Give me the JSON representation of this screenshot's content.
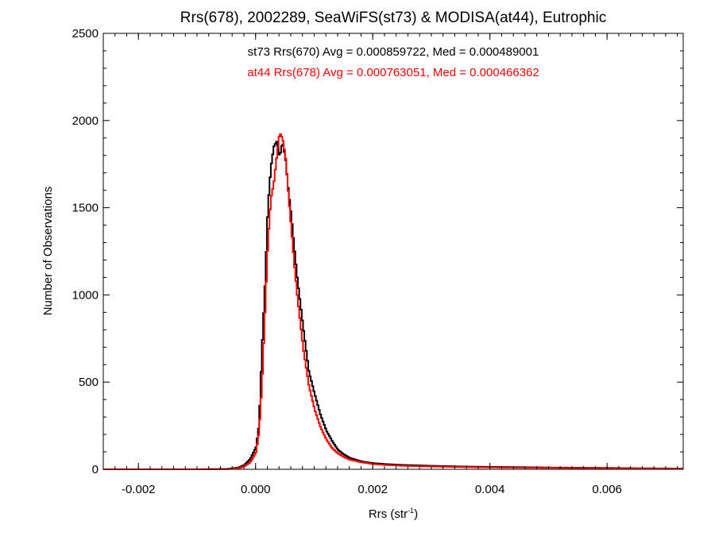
{
  "chart_data": {
    "type": "line",
    "title": "Rrs(678), 2002289, SeaWiFS(st73) & MODISA(at44), Eutrophic",
    "xlabel": {
      "main": "Rrs (str",
      "sup": "-1",
      "end": ")"
    },
    "ylabel": "Number of Observations",
    "xlim": [
      -0.0026,
      0.0073
    ],
    "ylim": [
      0,
      2500
    ],
    "xticks": [
      -0.002,
      0.0,
      0.002,
      0.004,
      0.006
    ],
    "xtick_labels": [
      "-0.002",
      "0.000",
      "0.002",
      "0.004",
      "0.006"
    ],
    "yticks": [
      0,
      500,
      1000,
      1500,
      2000,
      2500
    ],
    "ytick_labels": [
      "0",
      "500",
      "1000",
      "1500",
      "2000",
      "2500"
    ],
    "annotations": [
      {
        "text": "st73 Rrs(670) Avg = 0.000859722, Med = 0.000489001",
        "color": "#000000"
      },
      {
        "text": "at44 Rrs(678) Avg = 0.000763051, Med = 0.000466362",
        "color": "#ff0000"
      }
    ],
    "series": [
      {
        "id": "st73",
        "color": "#000000",
        "points": [
          [
            -0.0026,
            0
          ],
          [
            -0.001,
            0
          ],
          [
            -0.0005,
            2
          ],
          [
            -0.0003,
            10
          ],
          [
            -0.0002,
            25
          ],
          [
            -0.0001,
            60
          ],
          [
            0.0,
            130
          ],
          [
            5e-05,
            260
          ],
          [
            0.0001,
            700
          ],
          [
            0.00015,
            1050
          ],
          [
            0.0002,
            1500
          ],
          [
            0.00025,
            1730
          ],
          [
            0.0003,
            1850
          ],
          [
            0.00035,
            1880
          ],
          [
            0.0004,
            1790
          ],
          [
            0.00045,
            1880
          ],
          [
            0.0005,
            1780
          ],
          [
            0.00055,
            1600
          ],
          [
            0.0006,
            1450
          ],
          [
            0.00065,
            1270
          ],
          [
            0.0007,
            1100
          ],
          [
            0.00075,
            960
          ],
          [
            0.0008,
            820
          ],
          [
            0.0009,
            560
          ],
          [
            0.001,
            430
          ],
          [
            0.0011,
            310
          ],
          [
            0.0012,
            220
          ],
          [
            0.0013,
            160
          ],
          [
            0.0014,
            110
          ],
          [
            0.0015,
            85
          ],
          [
            0.0016,
            65
          ],
          [
            0.0018,
            45
          ],
          [
            0.002,
            35
          ],
          [
            0.0022,
            30
          ],
          [
            0.0025,
            25
          ],
          [
            0.003,
            20
          ],
          [
            0.0035,
            16
          ],
          [
            0.004,
            14
          ],
          [
            0.0045,
            12
          ],
          [
            0.005,
            10
          ],
          [
            0.0055,
            9
          ],
          [
            0.006,
            8
          ],
          [
            0.0065,
            6
          ],
          [
            0.007,
            5
          ],
          [
            0.0073,
            4
          ]
        ]
      },
      {
        "id": "at44",
        "color": "#ff0000",
        "points": [
          [
            -0.0026,
            0
          ],
          [
            -0.001,
            0
          ],
          [
            -0.0005,
            1
          ],
          [
            -0.0003,
            6
          ],
          [
            -0.0002,
            18
          ],
          [
            -0.0001,
            40
          ],
          [
            0.0,
            100
          ],
          [
            5e-05,
            220
          ],
          [
            0.0001,
            500
          ],
          [
            0.00015,
            900
          ],
          [
            0.0002,
            1300
          ],
          [
            0.00025,
            1550
          ],
          [
            0.0003,
            1640
          ],
          [
            0.00035,
            1790
          ],
          [
            0.0004,
            1930
          ],
          [
            0.00045,
            1900
          ],
          [
            0.0005,
            1790
          ],
          [
            0.00055,
            1580
          ],
          [
            0.0006,
            1380
          ],
          [
            0.00065,
            1180
          ],
          [
            0.0007,
            1000
          ],
          [
            0.00075,
            850
          ],
          [
            0.0008,
            700
          ],
          [
            0.0009,
            480
          ],
          [
            0.001,
            340
          ],
          [
            0.0011,
            240
          ],
          [
            0.0012,
            170
          ],
          [
            0.0013,
            120
          ],
          [
            0.0014,
            90
          ],
          [
            0.0015,
            70
          ],
          [
            0.0016,
            55
          ],
          [
            0.0018,
            40
          ],
          [
            0.002,
            30
          ],
          [
            0.0022,
            25
          ],
          [
            0.0025,
            20
          ],
          [
            0.003,
            16
          ],
          [
            0.0035,
            13
          ],
          [
            0.004,
            11
          ],
          [
            0.0045,
            9
          ],
          [
            0.005,
            8
          ],
          [
            0.0055,
            7
          ],
          [
            0.006,
            6
          ],
          [
            0.0065,
            5
          ],
          [
            0.007,
            4
          ],
          [
            0.0073,
            3
          ]
        ]
      }
    ]
  }
}
